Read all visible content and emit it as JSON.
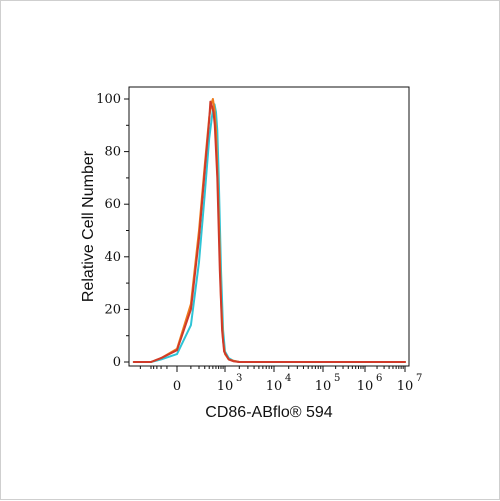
{
  "chart_data": {
    "type": "line",
    "title": "",
    "xlabel": "CD86-ABflo® 594",
    "ylabel": "Relative Cell Number",
    "xscale": "biexponential",
    "ylim": [
      0,
      100
    ],
    "yticks": [
      {
        "value": 0,
        "label": "0"
      },
      {
        "value": 20,
        "label": "20"
      },
      {
        "value": 40,
        "label": "40"
      },
      {
        "value": 60,
        "label": "60"
      },
      {
        "value": 80,
        "label": "80"
      },
      {
        "value": 100,
        "label": "100"
      }
    ],
    "xticks": [
      {
        "value": 0,
        "base": "0",
        "exp": ""
      },
      {
        "value": 1000,
        "base": "10",
        "exp": "3"
      },
      {
        "value": 10000,
        "base": "10",
        "exp": "4"
      },
      {
        "value": 100000,
        "base": "10",
        "exp": "5"
      },
      {
        "value": 1000000,
        "base": "10",
        "exp": "6"
      },
      {
        "value": 10000000,
        "base": "10",
        "exp": "7"
      }
    ],
    "grid": false,
    "legend": "none",
    "series": [
      {
        "color": "#2ec4d6",
        "x": [
          -1500,
          -500,
          -200,
          0,
          100,
          200,
          300,
          400,
          500,
          550,
          600,
          650,
          700,
          800,
          900,
          1000,
          1200,
          1500,
          2000,
          5000,
          100000,
          10000000
        ],
        "y": [
          0,
          0,
          1,
          3,
          14,
          38,
          64,
          85,
          96,
          98,
          95,
          88,
          72,
          35,
          12,
          4,
          1.5,
          0.5,
          0,
          0,
          0,
          0
        ]
      },
      {
        "color": "#ee7b1c",
        "x": [
          -1500,
          -500,
          -200,
          0,
          100,
          200,
          300,
          400,
          450,
          500,
          550,
          600,
          700,
          800,
          900,
          1000,
          1200,
          1500,
          2000,
          5000,
          100000,
          10000000
        ],
        "y": [
          0,
          0,
          1.5,
          5,
          22,
          50,
          75,
          93,
          98,
          100,
          96,
          88,
          58,
          24,
          8,
          3,
          1,
          0.5,
          0,
          0,
          0,
          0
        ]
      },
      {
        "color": "#cf3a2a",
        "x": [
          -1500,
          -500,
          -200,
          0,
          100,
          200,
          300,
          400,
          430,
          480,
          520,
          560,
          650,
          750,
          850,
          950,
          1200,
          1500,
          2000,
          5000,
          100000,
          10000000
        ],
        "y": [
          0,
          0,
          1.5,
          4.5,
          20,
          47,
          73,
          92,
          99,
          97,
          95,
          90,
          70,
          35,
          12,
          4,
          1,
          0.3,
          0,
          0,
          0,
          0
        ]
      }
    ]
  }
}
